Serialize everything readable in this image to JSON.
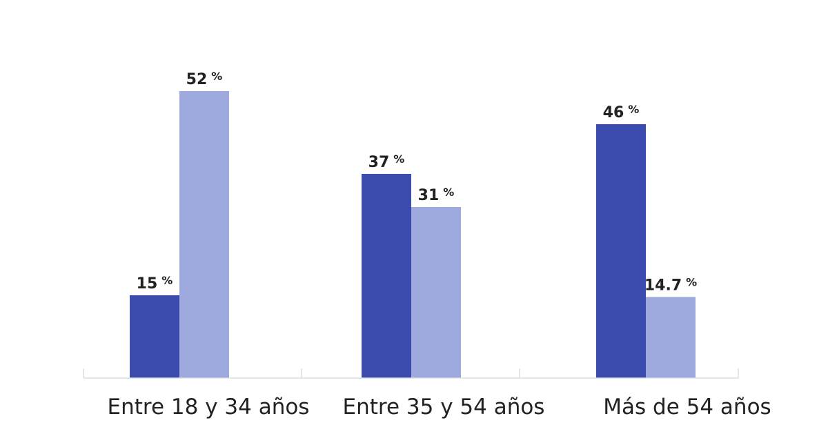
{
  "chart_data": {
    "type": "bar",
    "title": "",
    "xlabel": "",
    "ylabel": "",
    "ylim": [
      0,
      60
    ],
    "grid": false,
    "legend": "none",
    "unit": "%",
    "categories": [
      "Entre 18 y 34 años",
      "Entre 35 y 54 años",
      "Más de 54 años"
    ],
    "series": [
      {
        "values": [
          15,
          37,
          46
        ],
        "labels": [
          "15",
          "37",
          "46"
        ],
        "color": "#3a4aad"
      },
      {
        "values": [
          52,
          31,
          14.7
        ],
        "labels": [
          "52",
          "31",
          "14.7"
        ],
        "color": "#9ea9dd"
      }
    ]
  }
}
